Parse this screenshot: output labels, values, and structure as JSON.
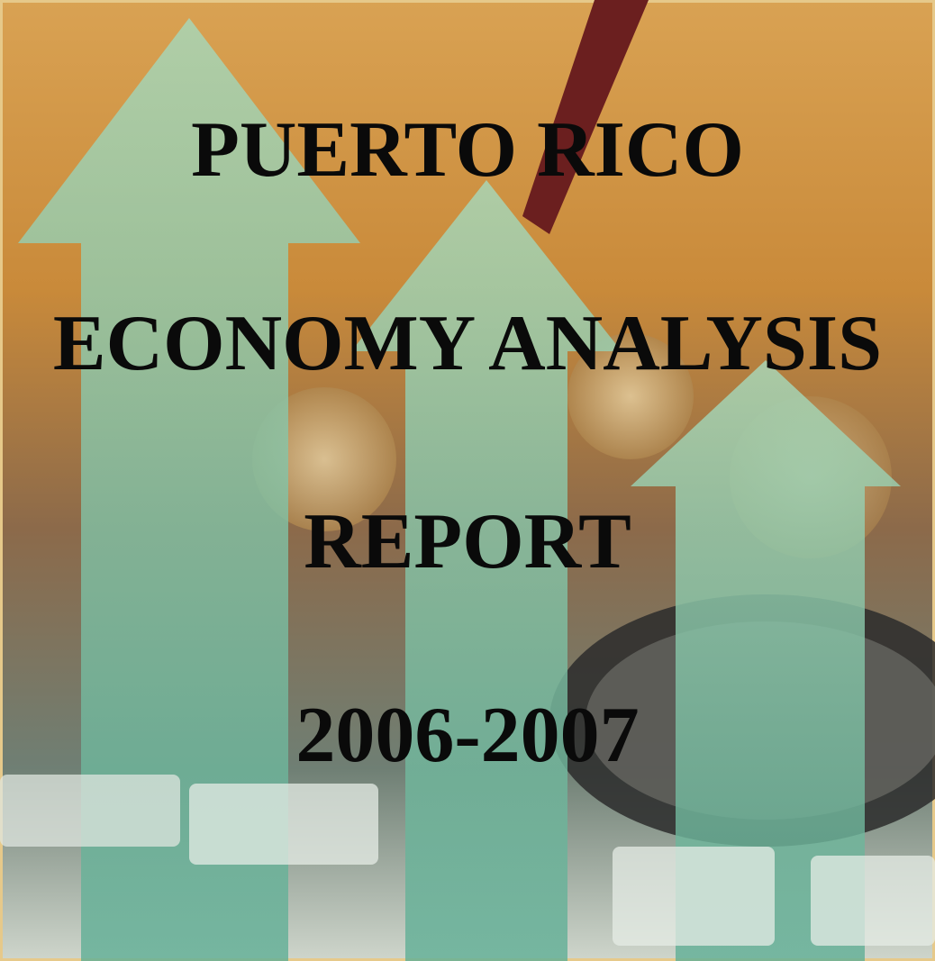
{
  "cover": {
    "lines": [
      "PUERTO RICO",
      "ECONOMY ANALYSIS",
      "REPORT",
      "2006-2007"
    ]
  }
}
